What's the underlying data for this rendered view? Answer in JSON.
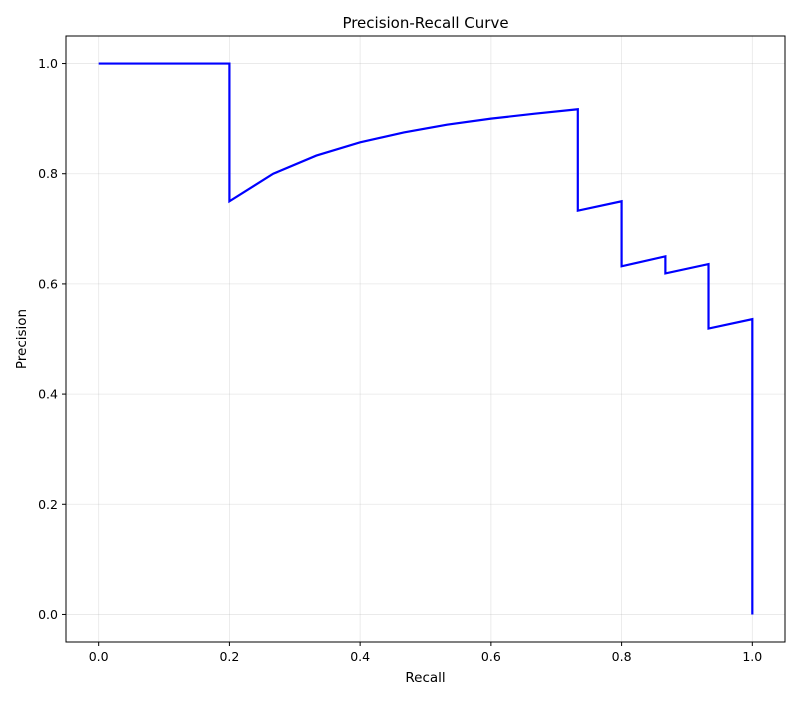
{
  "chart_data": {
    "type": "line",
    "title": "Precision-Recall Curve",
    "xlabel": "Recall",
    "ylabel": "Precision",
    "xlim": [
      -0.05,
      1.05
    ],
    "ylim": [
      -0.05,
      1.05
    ],
    "xticks": [
      0.0,
      0.2,
      0.4,
      0.6,
      0.8,
      1.0
    ],
    "xtick_labels": [
      "0.0",
      "0.2",
      "0.4",
      "0.6",
      "0.8",
      "1.0"
    ],
    "yticks": [
      0.0,
      0.2,
      0.4,
      0.6,
      0.8,
      1.0
    ],
    "ytick_labels": [
      "0.0",
      "0.2",
      "0.4",
      "0.6",
      "0.8",
      "1.0"
    ],
    "grid": true,
    "legend": null,
    "series": [
      {
        "color": "#0000ff",
        "x": [
          0.0,
          0.2,
          0.2,
          0.267,
          0.333,
          0.4,
          0.467,
          0.533,
          0.6,
          0.667,
          0.733,
          0.733,
          0.8,
          0.8,
          0.867,
          0.867,
          0.933,
          0.933,
          1.0,
          1.0
        ],
        "y": [
          1.0,
          1.0,
          0.75,
          0.8,
          0.833,
          0.857,
          0.875,
          0.889,
          0.9,
          0.909,
          0.917,
          0.733,
          0.75,
          0.632,
          0.65,
          0.619,
          0.636,
          0.519,
          0.536,
          0.0
        ]
      }
    ]
  }
}
